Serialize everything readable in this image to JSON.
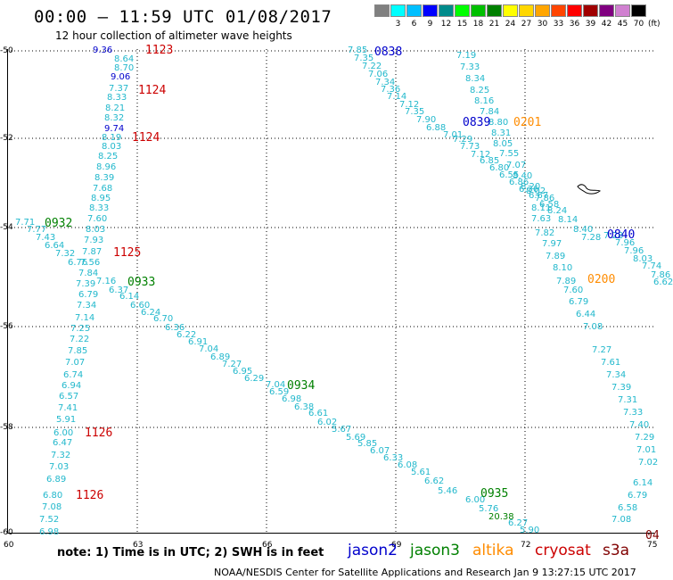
{
  "header": {
    "title": "00:00 – 11:59 UTC 01/08/2017",
    "subtitle": "12 hour collection of altimeter wave heights"
  },
  "color_scale": {
    "unit": "(ft)",
    "items": [
      {
        "label": "",
        "color": "#808080"
      },
      {
        "label": "3",
        "color": "#00ffff"
      },
      {
        "label": "6",
        "color": "#00bfff"
      },
      {
        "label": "9",
        "color": "#0000ff"
      },
      {
        "label": "12",
        "color": "#008b8b"
      },
      {
        "label": "15",
        "color": "#00ff00"
      },
      {
        "label": "18",
        "color": "#00c000"
      },
      {
        "label": "21",
        "color": "#008000"
      },
      {
        "label": "24",
        "color": "#ffff00"
      },
      {
        "label": "27",
        "color": "#ffd700"
      },
      {
        "label": "30",
        "color": "#ffa500"
      },
      {
        "label": "33",
        "color": "#ff4500"
      },
      {
        "label": "36",
        "color": "#ff0000"
      },
      {
        "label": "39",
        "color": "#a00000"
      },
      {
        "label": "42",
        "color": "#800080"
      },
      {
        "label": "45",
        "color": "#d080d0"
      },
      {
        "label": "70",
        "color": "#000000"
      }
    ]
  },
  "axes": {
    "y_ticks": [
      "-50",
      "-52",
      "-54",
      "-56",
      "-58",
      "-60"
    ],
    "x_ticks": [
      "60",
      "63",
      "66",
      "69",
      "72",
      "75"
    ]
  },
  "colors": {
    "jason2": "#0000cc",
    "jason3": "#008000",
    "altika": "#ff8c00",
    "cryosat": "#cc0000",
    "s3a": "#800000",
    "swh": "#22b8cc"
  },
  "footer": {
    "note": "note:  1) Time is in UTC;  2) SWH is in feet",
    "legend": [
      "jason2",
      "jason3",
      "altika",
      "cryosat",
      "s3a"
    ],
    "credit": "NOAA/NESDIS Center for Satellite Applications and Research    Jan  9 13:27:15 UTC 2017"
  },
  "pass_times": [
    {
      "text": "1123",
      "sat": "cryosat"
    },
    {
      "text": "1124",
      "sat": "cryosat"
    },
    {
      "text": "1124",
      "sat": "cryosat"
    },
    {
      "text": "1125",
      "sat": "cryosat"
    },
    {
      "text": "1126",
      "sat": "cryosat"
    },
    {
      "text": "1126",
      "sat": "cryosat"
    },
    {
      "text": "0932",
      "sat": "jason3"
    },
    {
      "text": "0933",
      "sat": "jason3"
    },
    {
      "text": "0934",
      "sat": "jason3"
    },
    {
      "text": "0935",
      "sat": "jason3"
    },
    {
      "text": "0838",
      "sat": "jason2"
    },
    {
      "text": "0839",
      "sat": "jason2"
    },
    {
      "text": "0840",
      "sat": "jason2"
    },
    {
      "text": "0201",
      "sat": "altika"
    },
    {
      "text": "0200",
      "sat": "altika"
    },
    {
      "text": "04",
      "sat": "s3a"
    }
  ],
  "swh_track_a": [
    "9.36",
    "8.64",
    "8.70",
    "9.06",
    "7.37",
    "8.33",
    "8.21",
    "8.32",
    "9.74",
    "8.19",
    "8.03",
    "8.25",
    "8.96",
    "8.39",
    "7.68",
    "8.95",
    "8.33",
    "7.60",
    "8.03",
    "7.93",
    "7.87",
    "7.56",
    "7.84",
    "7.39",
    "6.79",
    "7.34",
    "7.14",
    "7.25",
    "7.22",
    "7.85",
    "7.07",
    "6.74",
    "6.94",
    "6.57",
    "7.41",
    "5.91",
    "6.00",
    "6.47",
    "7.32",
    "7.03",
    "6.89",
    "6.80",
    "7.08",
    "7.52",
    "6.98"
  ],
  "swh_track_b": [
    "7.71",
    "7.77",
    "7.43",
    "6.64",
    "7.32",
    "6.76",
    "7.16",
    "6.37",
    "6.14",
    "6.60",
    "6.24",
    "6.70",
    "6.36",
    "6.22",
    "6.91",
    "7.04",
    "6.89",
    "7.27",
    "6.95",
    "6.29",
    "7.04",
    "6.59",
    "6.98",
    "6.38",
    "6.61",
    "6.02",
    "5.67",
    "5.69",
    "5.85",
    "6.07",
    "6.33",
    "6.08",
    "5.61",
    "6.62",
    "5.46",
    "6.00",
    "5.76",
    "20.38",
    "6.27",
    "5.90"
  ],
  "swh_track_c": [
    "7.85",
    "7.35",
    "7.22",
    "7.06",
    "7.34",
    "7.36",
    "7.14",
    "7.12",
    "7.35",
    "7.90",
    "6.88",
    "7.01",
    "7.29",
    "7.73",
    "7.12",
    "6.85",
    "6.80",
    "6.55",
    "6.86",
    "6.36",
    "6.67",
    "6.58",
    "7.28",
    "7.96",
    "7.96",
    "8.03",
    "7.74",
    "7.86",
    "6.62"
  ],
  "swh_track_d": [
    "7.19",
    "7.33",
    "8.34",
    "8.25",
    "8.16",
    "7.84",
    "8.80",
    "8.31",
    "8.05",
    "7.55",
    "7.07",
    "8.40",
    "8.20",
    "8.02",
    "7.86",
    "8.11",
    "8.24",
    "8.14",
    "8.40",
    "7.28",
    "7.63",
    "7.82",
    "7.97",
    "7.89",
    "8.10",
    "7.89",
    "7.60",
    "6.79",
    "6.44",
    "7.08",
    "7.27",
    "7.61",
    "7.34",
    "7.39",
    "7.31",
    "7.33",
    "7.40",
    "7.29",
    "7.01",
    "7.02",
    "6.14",
    "6.79",
    "6.58",
    "7.08"
  ]
}
